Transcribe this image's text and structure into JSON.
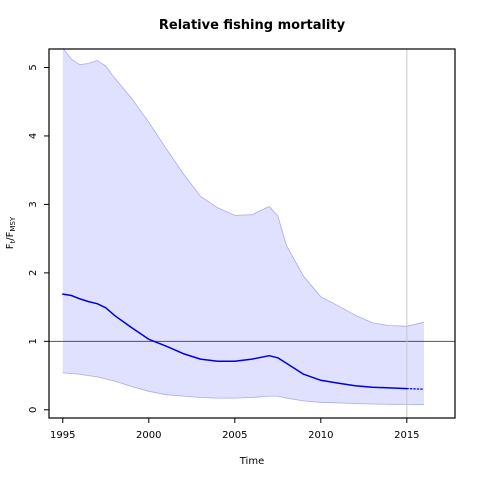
{
  "chart_data": {
    "type": "line",
    "title": "Relative fishing mortality",
    "xlabel": "Time",
    "ylabel_main": "F",
    "ylabel_sub1": "t",
    "ylabel_sep": "/F",
    "ylabel_sub2": "MSY",
    "xlim": [
      1994.2,
      2017.8
    ],
    "ylim": [
      -0.12,
      5.27
    ],
    "x_ticks": [
      1995,
      2000,
      2005,
      2010,
      2015
    ],
    "x_tick_labels": [
      "1995",
      "2000",
      "2005",
      "2010",
      "2015"
    ],
    "y_ticks": [
      0,
      1,
      2,
      3,
      4,
      5
    ],
    "y_tick_labels": [
      "0",
      "1",
      "2",
      "3",
      "4",
      "5"
    ],
    "reference_line_y": 1,
    "vertical_line_x": 2015,
    "colors": {
      "line": "#0000dd",
      "band_fill": "#e0e0ff",
      "band_edge": "#aaaaee",
      "reference": "#555555",
      "vline": "#c8c8c8"
    },
    "series": [
      {
        "x": [
          1995,
          1995.5,
          1996,
          1996.5,
          1997,
          1997.5,
          1998,
          1999,
          2000,
          2001,
          2002,
          2003,
          2004,
          2005,
          2006,
          2007,
          2007.5,
          2008,
          2009,
          2010,
          2011,
          2012,
          2013,
          2014,
          2015
        ],
        "values": [
          1.69,
          1.67,
          1.62,
          1.58,
          1.55,
          1.49,
          1.38,
          1.2,
          1.03,
          0.93,
          0.82,
          0.74,
          0.71,
          0.71,
          0.74,
          0.79,
          0.76,
          0.68,
          0.52,
          0.43,
          0.39,
          0.35,
          0.33,
          0.32,
          0.31
        ]
      },
      {
        "x": [
          2015,
          2015.5,
          2016
        ],
        "values": [
          0.31,
          0.305,
          0.3
        ],
        "style": "dotted"
      }
    ],
    "band": {
      "x": [
        1995,
        1995.5,
        1996,
        1996.5,
        1997,
        1997.5,
        1998,
        1999,
        2000,
        2001,
        2002,
        2003,
        2004,
        2005,
        2006,
        2007,
        2007.5,
        2008,
        2009,
        2010,
        2011,
        2012,
        2013,
        2014,
        2015,
        2016
      ],
      "upper": [
        5.28,
        5.12,
        5.04,
        5.06,
        5.1,
        5.02,
        4.85,
        4.55,
        4.2,
        3.82,
        3.45,
        3.12,
        2.95,
        2.84,
        2.85,
        2.97,
        2.83,
        2.4,
        1.95,
        1.65,
        1.52,
        1.38,
        1.27,
        1.23,
        1.22,
        1.28
      ],
      "lower": [
        0.54,
        0.53,
        0.52,
        0.5,
        0.48,
        0.45,
        0.42,
        0.34,
        0.27,
        0.22,
        0.2,
        0.18,
        0.17,
        0.17,
        0.18,
        0.2,
        0.2,
        0.17,
        0.13,
        0.11,
        0.1,
        0.09,
        0.085,
        0.08,
        0.078,
        0.075
      ]
    }
  }
}
